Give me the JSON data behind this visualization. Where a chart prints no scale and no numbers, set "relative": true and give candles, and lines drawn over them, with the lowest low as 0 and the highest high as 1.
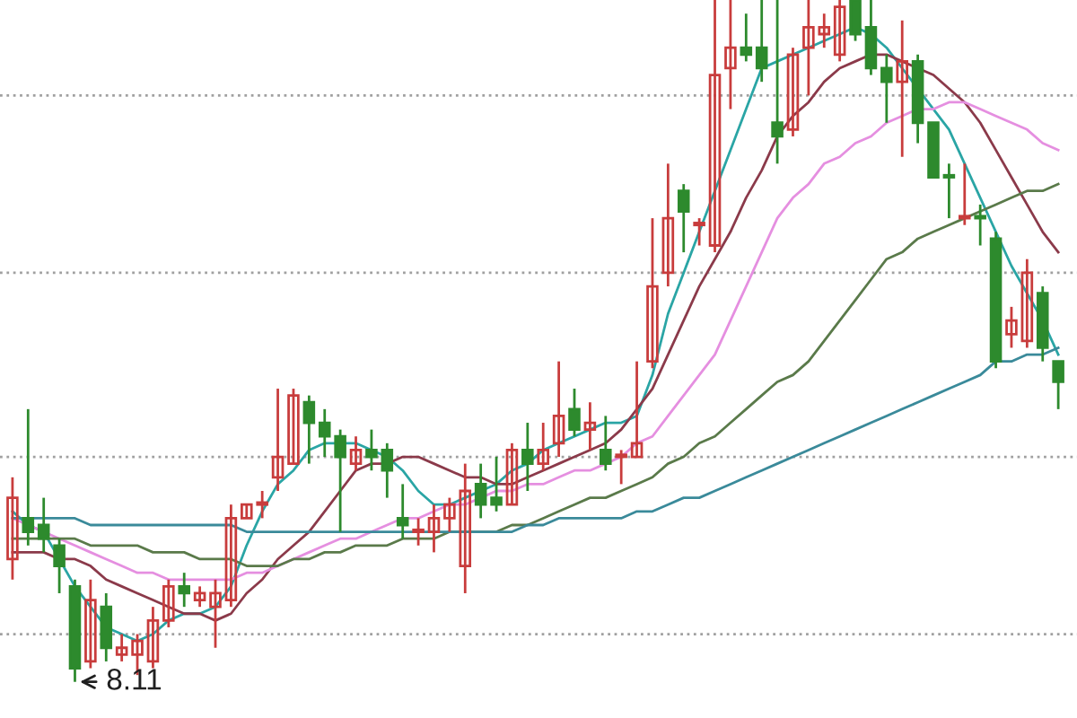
{
  "chart_data": {
    "type": "candlestick",
    "relative": true,
    "categories": [
      null,
      null,
      null,
      null,
      null,
      null,
      null,
      null,
      null,
      null,
      null,
      null,
      null,
      null,
      null,
      null,
      null,
      null,
      null,
      null,
      null,
      null,
      null,
      null,
      null,
      null,
      null,
      null,
      null,
      null,
      null,
      null,
      null,
      null,
      null,
      null,
      null,
      null,
      null,
      null,
      null,
      null,
      null,
      null,
      null,
      null,
      null,
      null,
      null,
      null,
      null,
      null,
      null,
      null,
      null,
      null,
      null,
      null,
      null,
      null,
      null,
      null,
      null,
      null,
      null,
      null,
      null,
      null
    ],
    "ohlc": [
      [
        0.18,
        0.3,
        0.15,
        0.27
      ],
      [
        0.24,
        0.4,
        0.2,
        0.22
      ],
      [
        0.23,
        0.27,
        0.19,
        0.21
      ],
      [
        0.2,
        0.21,
        0.13,
        0.17
      ],
      [
        0.14,
        0.15,
        0,
        0.02
      ],
      [
        0.03,
        0.15,
        0.02,
        0.12
      ],
      [
        0.11,
        0.13,
        0.03,
        0.05
      ],
      [
        0.04,
        0.07,
        0.03,
        0.05
      ],
      [
        0.04,
        0.07,
        0.01,
        0.06
      ],
      [
        0.03,
        0.11,
        0.02,
        0.09
      ],
      [
        0.09,
        0.15,
        0.08,
        0.14
      ],
      [
        0.14,
        0.16,
        0.11,
        0.13
      ],
      [
        0.12,
        0.14,
        0.11,
        0.13
      ],
      [
        0.11,
        0.15,
        0.05,
        0.13
      ],
      [
        0.12,
        0.26,
        0.11,
        0.24
      ],
      [
        0.24,
        0.26,
        0.24,
        0.26
      ],
      [
        0.26,
        0.28,
        0.24,
        0.26
      ],
      [
        0.3,
        0.43,
        0.28,
        0.33
      ],
      [
        0.32,
        0.43,
        0.32,
        0.42
      ],
      [
        0.41,
        0.42,
        0.32,
        0.38
      ],
      [
        0.38,
        0.4,
        0.33,
        0.36
      ],
      [
        0.36,
        0.37,
        0.22,
        0.33
      ],
      [
        0.32,
        0.36,
        0.31,
        0.34
      ],
      [
        0.34,
        0.37,
        0.31,
        0.33
      ],
      [
        0.34,
        0.35,
        0.27,
        0.31
      ],
      [
        0.24,
        0.29,
        0.21,
        0.23
      ],
      [
        0.22,
        0.24,
        0.2,
        0.22
      ],
      [
        0.22,
        0.26,
        0.19,
        0.24
      ],
      [
        0.24,
        0.27,
        0.22,
        0.26
      ],
      [
        0.17,
        0.32,
        0.13,
        0.28
      ],
      [
        0.29,
        0.32,
        0.24,
        0.26
      ],
      [
        0.27,
        0.33,
        0.25,
        0.26
      ],
      [
        0.26,
        0.35,
        0.26,
        0.34
      ],
      [
        0.34,
        0.38,
        0.28,
        0.32
      ],
      [
        0.32,
        0.38,
        0.31,
        0.34
      ],
      [
        0.35,
        0.47,
        0.33,
        0.39
      ],
      [
        0.4,
        0.43,
        0.36,
        0.37
      ],
      [
        0.37,
        0.41,
        0.34,
        0.38
      ],
      [
        0.34,
        0.39,
        0.31,
        0.32
      ],
      [
        0.33,
        0.34,
        0.29,
        0.33
      ],
      [
        0.33,
        0.47,
        0.33,
        0.35
      ],
      [
        0.47,
        0.68,
        0.46,
        0.58
      ],
      [
        0.6,
        0.76,
        0.58,
        0.68
      ],
      [
        0.72,
        0.73,
        0.63,
        0.69
      ],
      [
        0.67,
        0.68,
        0.64,
        0.67
      ],
      [
        0.64,
        1.0,
        0.63,
        0.89
      ],
      [
        0.9,
        1.0,
        0.84,
        0.93
      ],
      [
        0.93,
        0.98,
        0.91,
        0.92
      ],
      [
        0.93,
        1.0,
        0.88,
        0.9
      ],
      [
        0.82,
        1.0,
        0.76,
        0.8
      ],
      [
        0.81,
        0.93,
        0.8,
        0.92
      ],
      [
        0.93,
        1.0,
        0.86,
        0.96
      ],
      [
        0.95,
        0.98,
        0.93,
        0.96
      ],
      [
        0.92,
        1.0,
        0.91,
        0.99
      ],
      [
        1.0,
        1.0,
        0.94,
        0.95
      ],
      [
        0.96,
        1.0,
        0.89,
        0.9
      ],
      [
        0.9,
        0.92,
        0.82,
        0.88
      ],
      [
        0.88,
        0.97,
        0.77,
        0.91
      ],
      [
        0.91,
        0.92,
        0.79,
        0.82
      ],
      [
        0.82,
        0.82,
        0.74,
        0.74
      ],
      [
        0.74,
        0.76,
        0.68,
        0.74
      ],
      [
        0.68,
        0.76,
        0.67,
        0.68
      ],
      [
        0.68,
        0.7,
        0.64,
        0.68
      ],
      [
        0.65,
        0.66,
        0.46,
        0.47
      ],
      [
        0.51,
        0.55,
        0.49,
        0.53
      ],
      [
        0.5,
        0.62,
        0.49,
        0.6
      ],
      [
        0.57,
        0.58,
        0.47,
        0.49
      ],
      [
        0.47,
        0.47,
        0.4,
        0.44
      ]
    ],
    "colors": [
      "#c83c3c",
      "#2d8a2d",
      "#2d8a2d",
      "#2d8a2d",
      "#2d8a2d",
      "#c83c3c",
      "#2d8a2d",
      "#c83c3c",
      "#c83c3c",
      "#c83c3c",
      "#c83c3c",
      "#2d8a2d",
      "#c83c3c",
      "#c83c3c",
      "#c83c3c",
      "#c83c3c",
      "#c83c3c",
      "#c83c3c",
      "#c83c3c",
      "#2d8a2d",
      "#2d8a2d",
      "#2d8a2d",
      "#c83c3c",
      "#2d8a2d",
      "#2d8a2d",
      "#2d8a2d",
      "#c83c3c",
      "#c83c3c",
      "#c83c3c",
      "#c83c3c",
      "#2d8a2d",
      "#2d8a2d",
      "#c83c3c",
      "#2d8a2d",
      "#c83c3c",
      "#c83c3c",
      "#2d8a2d",
      "#c83c3c",
      "#2d8a2d",
      "#c83c3c",
      "#c83c3c",
      "#c83c3c",
      "#c83c3c",
      "#2d8a2d",
      "#c83c3c",
      "#c83c3c",
      "#c83c3c",
      "#2d8a2d",
      "#2d8a2d",
      "#2d8a2d",
      "#c83c3c",
      "#c83c3c",
      "#c83c3c",
      "#c83c3c",
      "#2d8a2d",
      "#2d8a2d",
      "#2d8a2d",
      "#c83c3c",
      "#2d8a2d",
      "#2d8a2d",
      "#2d8a2d",
      "#c83c3c",
      "#2d8a2d",
      "#2d8a2d",
      "#c83c3c",
      "#c83c3c",
      "#2d8a2d",
      "#2d8a2d"
    ],
    "series": [
      {
        "type": "line",
        "color": "#2aa5a5",
        "values": [
          0.25,
          0.23,
          0.22,
          0.18,
          0.14,
          0.11,
          0.08,
          0.07,
          0.06,
          0.07,
          0.09,
          0.1,
          0.1,
          0.11,
          0.14,
          0.2,
          0.25,
          0.29,
          0.31,
          0.34,
          0.35,
          0.35,
          0.35,
          0.34,
          0.33,
          0.31,
          0.28,
          0.26,
          0.26,
          0.27,
          0.28,
          0.29,
          0.31,
          0.32,
          0.34,
          0.35,
          0.36,
          0.37,
          0.38,
          0.38,
          0.39,
          0.45,
          0.54,
          0.6,
          0.66,
          0.72,
          0.78,
          0.84,
          0.9,
          0.91,
          0.92,
          0.93,
          0.94,
          0.95,
          0.96,
          0.95,
          0.93,
          0.9,
          0.87,
          0.84,
          0.81,
          0.76,
          0.71,
          0.66,
          0.61,
          0.57,
          0.53,
          0.48
        ]
      },
      {
        "type": "line",
        "color": "#8b3a4a",
        "values": [
          0.19,
          0.19,
          0.19,
          0.18,
          0.18,
          0.17,
          0.15,
          0.14,
          0.13,
          0.12,
          0.11,
          0.1,
          0.1,
          0.09,
          0.1,
          0.13,
          0.15,
          0.18,
          0.2,
          0.22,
          0.25,
          0.28,
          0.31,
          0.32,
          0.32,
          0.33,
          0.33,
          0.32,
          0.31,
          0.3,
          0.3,
          0.29,
          0.29,
          0.3,
          0.31,
          0.32,
          0.33,
          0.34,
          0.35,
          0.37,
          0.4,
          0.43,
          0.48,
          0.53,
          0.58,
          0.62,
          0.66,
          0.71,
          0.75,
          0.8,
          0.83,
          0.85,
          0.88,
          0.9,
          0.91,
          0.92,
          0.92,
          0.91,
          0.9,
          0.89,
          0.87,
          0.85,
          0.82,
          0.78,
          0.74,
          0.7,
          0.66,
          0.63
        ]
      },
      {
        "type": "line",
        "color": "#e58fe0",
        "values": [
          0.24,
          0.23,
          0.22,
          0.21,
          0.2,
          0.19,
          0.18,
          0.17,
          0.16,
          0.16,
          0.15,
          0.15,
          0.15,
          0.15,
          0.15,
          0.16,
          0.16,
          0.17,
          0.18,
          0.19,
          0.2,
          0.21,
          0.21,
          0.22,
          0.23,
          0.24,
          0.24,
          0.25,
          0.26,
          0.26,
          0.27,
          0.28,
          0.28,
          0.29,
          0.29,
          0.3,
          0.31,
          0.31,
          0.32,
          0.33,
          0.35,
          0.36,
          0.39,
          0.42,
          0.45,
          0.48,
          0.53,
          0.58,
          0.63,
          0.68,
          0.71,
          0.73,
          0.76,
          0.77,
          0.79,
          0.8,
          0.82,
          0.83,
          0.84,
          0.84,
          0.85,
          0.85,
          0.84,
          0.83,
          0.82,
          0.81,
          0.79,
          0.78
        ]
      },
      {
        "type": "line",
        "color": "#5a7a4a",
        "values": [
          0.21,
          0.21,
          0.21,
          0.21,
          0.21,
          0.2,
          0.2,
          0.2,
          0.2,
          0.19,
          0.19,
          0.19,
          0.18,
          0.18,
          0.18,
          0.17,
          0.17,
          0.17,
          0.18,
          0.18,
          0.19,
          0.19,
          0.2,
          0.2,
          0.2,
          0.21,
          0.21,
          0.21,
          0.22,
          0.22,
          0.22,
          0.22,
          0.23,
          0.23,
          0.24,
          0.25,
          0.26,
          0.27,
          0.27,
          0.28,
          0.29,
          0.3,
          0.32,
          0.33,
          0.35,
          0.36,
          0.38,
          0.4,
          0.42,
          0.44,
          0.45,
          0.47,
          0.5,
          0.53,
          0.56,
          0.59,
          0.62,
          0.63,
          0.65,
          0.66,
          0.67,
          0.68,
          0.69,
          0.7,
          0.71,
          0.72,
          0.72,
          0.73
        ]
      },
      {
        "type": "line",
        "color": "#3a8a9a",
        "values": [
          0.24,
          0.24,
          0.24,
          0.24,
          0.24,
          0.23,
          0.23,
          0.23,
          0.23,
          0.23,
          0.23,
          0.23,
          0.23,
          0.23,
          0.23,
          0.22,
          0.22,
          0.22,
          0.22,
          0.22,
          0.22,
          0.22,
          0.22,
          0.22,
          0.22,
          0.22,
          0.22,
          0.22,
          0.22,
          0.22,
          0.22,
          0.22,
          0.22,
          0.23,
          0.23,
          0.24,
          0.24,
          0.24,
          0.24,
          0.24,
          0.25,
          0.25,
          0.26,
          0.27,
          0.27,
          0.28,
          0.29,
          0.3,
          0.31,
          0.32,
          0.33,
          0.34,
          0.35,
          0.36,
          0.37,
          0.38,
          0.39,
          0.4,
          0.41,
          0.42,
          0.43,
          0.44,
          0.45,
          0.47,
          0.47,
          0.48,
          0.48,
          0.49
        ]
      }
    ],
    "ref_lines": [
      {
        "axis": "y",
        "value": 0.86,
        "color": "#a0a0a0",
        "line_style": "dotted"
      },
      {
        "axis": "y",
        "value": 0.6,
        "color": "#a0a0a0",
        "line_style": "dotted"
      },
      {
        "axis": "y",
        "value": 0.33,
        "color": "#a0a0a0",
        "line_style": "dotted"
      },
      {
        "axis": "y",
        "value": 0.07,
        "color": "#a0a0a0",
        "line_style": "dotted"
      }
    ],
    "annotations": [
      {
        "text": "8.11",
        "y": 0
      }
    ]
  }
}
